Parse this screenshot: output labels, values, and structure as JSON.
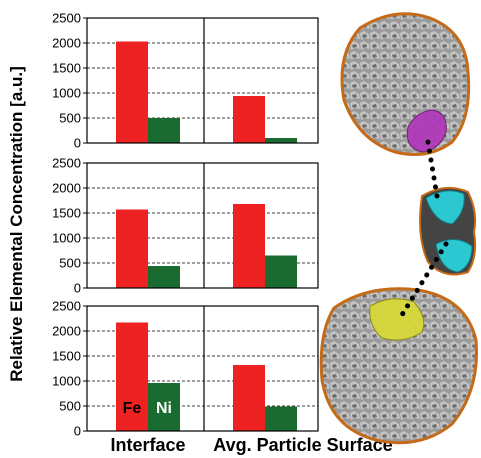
{
  "chart_data": {
    "type": "bar",
    "ylabel": "Relative Elemental Concentration [a.u.]",
    "categories": [
      "Interface",
      "Avg. Particle Surface"
    ],
    "ylim": [
      0,
      2500
    ],
    "yticks": [
      0,
      500,
      1000,
      1500,
      2000,
      2500
    ],
    "grid": "dashed horizontal",
    "series_colors": {
      "Fe": "#ee2222",
      "Ni": "#1a6b30"
    },
    "inline_labels": {
      "Fe": "Fe",
      "Ni": "Ni"
    },
    "panels": [
      {
        "series": [
          {
            "name": "Fe",
            "values": [
              2030,
              940
            ]
          },
          {
            "name": "Ni",
            "values": [
              500,
              100
            ]
          }
        ]
      },
      {
        "series": [
          {
            "name": "Fe",
            "values": [
              1570,
              1680
            ]
          },
          {
            "name": "Ni",
            "values": [
              440,
              650
            ]
          }
        ]
      },
      {
        "series": [
          {
            "name": "Fe",
            "values": [
              2170,
              1320
            ]
          },
          {
            "name": "Ni",
            "values": [
              960,
              490
            ]
          }
        ]
      }
    ]
  },
  "illustration": {
    "highlight_colors": {
      "top": "#b03ab8",
      "middle": "#2cc8d2",
      "bottom": "#d8d83a"
    }
  }
}
